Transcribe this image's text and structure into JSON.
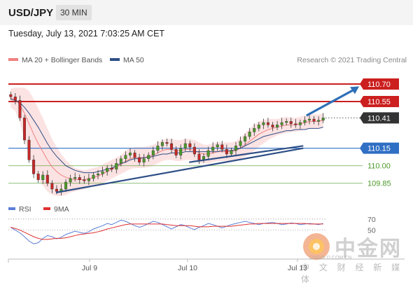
{
  "header": {
    "symbol": "USD/JPY",
    "timeframe": "30 MIN"
  },
  "timestamp": "Tuesday, July 13, 2021 7:03:25 AM CET",
  "legend": {
    "ma20_label": "MA 20 + Bollinger Bands",
    "ma20_color": "#f08080",
    "ma50_label": "MA 50",
    "ma50_color": "#2e4f86"
  },
  "credit": "Research © 2021 Trading Central",
  "rsi_legend": {
    "rsi_label": "RSI",
    "rsi_color": "#5b7fd6",
    "ma_label": "9MA",
    "ma_color": "#e03030"
  },
  "watermark": {
    "name": "中金网",
    "url": "CNGOLD.COM.CN",
    "sub": "中 文 财 经 新 媒 体"
  },
  "chart_data": [
    {
      "type": "candlestick",
      "y_range": [
        109.74,
        110.82
      ],
      "x_ticks": [
        "Jul 9",
        "Jul 10",
        "Jul 13"
      ],
      "price_levels": [
        {
          "label": "110.70",
          "value": 110.7,
          "kind": "resistance",
          "color": "#cc1f1f"
        },
        {
          "label": "110.55",
          "value": 110.55,
          "kind": "resistance",
          "color": "#cc1f1f"
        },
        {
          "label": "110.41",
          "value": 110.41,
          "kind": "last",
          "color": "#333333"
        },
        {
          "label": "110.15",
          "value": 110.15,
          "kind": "pivot",
          "color": "#2f6fc4"
        },
        {
          "label": "110.00",
          "value": 110.0,
          "kind": "support",
          "color": "#4c9a2a"
        },
        {
          "label": "109.85",
          "value": 109.85,
          "kind": "support",
          "color": "#4c9a2a"
        }
      ],
      "trendlines": [
        {
          "from": [
            0.15,
            109.77
          ],
          "to": [
            0.93,
            110.15
          ]
        },
        {
          "from": [
            0.57,
            110.03
          ],
          "to": [
            0.93,
            110.17
          ]
        }
      ],
      "arrow": {
        "from": [
          0.94,
          110.43
        ],
        "to": [
          1.0,
          110.68
        ]
      },
      "close": [
        110.59,
        110.56,
        110.41,
        110.22,
        110.05,
        109.93,
        109.88,
        109.92,
        109.85,
        109.8,
        109.78,
        109.8,
        109.86,
        109.89,
        109.9,
        109.88,
        109.87,
        109.89,
        109.92,
        109.93,
        109.95,
        109.98,
        109.97,
        110.02,
        110.06,
        110.09,
        110.11,
        110.07,
        110.03,
        110.06,
        110.09,
        110.13,
        110.17,
        110.2,
        110.19,
        110.14,
        110.09,
        110.15,
        110.19,
        110.16,
        110.1,
        110.05,
        110.08,
        110.13,
        110.16,
        110.18,
        110.14,
        110.1,
        110.13,
        110.17,
        110.21,
        110.25,
        110.29,
        110.32,
        110.35,
        110.37,
        110.35,
        110.33,
        110.35,
        110.37,
        110.38,
        110.36,
        110.35,
        110.37,
        110.39,
        110.4,
        110.38,
        110.39,
        110.41
      ],
      "ma20": [
        110.58,
        110.57,
        110.52,
        110.45,
        110.36,
        110.27,
        110.19,
        110.12,
        110.05,
        109.99,
        109.95,
        109.92,
        109.9,
        109.89,
        109.88,
        109.88,
        109.88,
        109.89,
        109.9,
        109.91,
        109.93,
        109.95,
        109.97,
        109.99,
        110.01,
        110.04,
        110.06,
        110.07,
        110.07,
        110.07,
        110.08,
        110.09,
        110.11,
        110.13,
        110.14,
        110.14,
        110.13,
        110.13,
        110.14,
        110.14,
        110.13,
        110.11,
        110.1,
        110.1,
        110.11,
        110.12,
        110.12,
        110.12,
        110.12,
        110.13,
        110.15,
        110.18,
        110.21,
        110.24,
        110.27,
        110.29,
        110.31,
        110.32,
        110.33,
        110.34,
        110.35,
        110.35,
        110.35,
        110.36,
        110.37,
        110.38,
        110.38,
        110.38,
        110.39
      ],
      "bb_width": [
        0.08,
        0.1,
        0.15,
        0.22,
        0.28,
        0.3,
        0.3,
        0.29,
        0.27,
        0.24,
        0.21,
        0.18,
        0.15,
        0.12,
        0.1,
        0.09,
        0.08,
        0.08,
        0.08,
        0.08,
        0.08,
        0.08,
        0.08,
        0.08,
        0.08,
        0.09,
        0.09,
        0.09,
        0.09,
        0.09,
        0.09,
        0.09,
        0.09,
        0.09,
        0.09,
        0.09,
        0.09,
        0.09,
        0.09,
        0.09,
        0.09,
        0.09,
        0.08,
        0.08,
        0.08,
        0.08,
        0.08,
        0.08,
        0.08,
        0.08,
        0.09,
        0.1,
        0.11,
        0.11,
        0.11,
        0.1,
        0.09,
        0.08,
        0.07,
        0.07,
        0.07,
        0.06,
        0.06,
        0.06,
        0.06,
        0.06,
        0.06,
        0.06,
        0.06
      ],
      "ma50": [
        110.57,
        110.56,
        110.54,
        110.5,
        110.45,
        110.39,
        110.33,
        110.26,
        110.19,
        110.13,
        110.08,
        110.04,
        110.0,
        109.98,
        109.96,
        109.95,
        109.94,
        109.94,
        109.94,
        109.95,
        109.96,
        109.97,
        109.98,
        110.0,
        110.02,
        110.03,
        110.05,
        110.06,
        110.06,
        110.07,
        110.07,
        110.08,
        110.09,
        110.1,
        110.1,
        110.11,
        110.11,
        110.11,
        110.12,
        110.12,
        110.12,
        110.12,
        110.12,
        110.12,
        110.12,
        110.12,
        110.13,
        110.13,
        110.13,
        110.14,
        110.15,
        110.17,
        110.19,
        110.21,
        110.23,
        110.25,
        110.26,
        110.27,
        110.28,
        110.29,
        110.3,
        110.3,
        110.31,
        110.31,
        110.31,
        110.32,
        110.32,
        110.32,
        110.33
      ]
    },
    {
      "type": "line",
      "name": "RSI",
      "y_ticks": [
        70,
        50
      ],
      "y_range": [
        10,
        80
      ],
      "rsi": [
        55,
        50,
        45,
        38,
        30,
        25,
        27,
        35,
        40,
        38,
        34,
        37,
        42,
        45,
        48,
        46,
        44,
        47,
        52,
        55,
        58,
        62,
        60,
        64,
        68,
        66,
        62,
        58,
        55,
        58,
        62,
        66,
        64,
        60,
        56,
        52,
        56,
        60,
        58,
        54,
        51,
        55,
        58,
        62,
        60,
        57,
        54,
        57,
        60,
        62,
        64,
        66,
        64,
        62,
        60,
        62,
        63,
        64,
        62,
        60,
        61,
        63,
        62,
        60,
        61,
        62,
        61,
        60,
        62
      ],
      "ma9": [
        55,
        53,
        50,
        46,
        42,
        38,
        35,
        33,
        33,
        34,
        35,
        35,
        36,
        38,
        40,
        42,
        43,
        44,
        45,
        47,
        49,
        52,
        54,
        56,
        58,
        60,
        61,
        61,
        61,
        61,
        61,
        61,
        61,
        61,
        60,
        59,
        58,
        58,
        58,
        58,
        57,
        56,
        56,
        56,
        57,
        57,
        57,
        57,
        57,
        58,
        59,
        60,
        61,
        61,
        62,
        62,
        62,
        62,
        62,
        62,
        62,
        62,
        62,
        62,
        62,
        61,
        61,
        61,
        61
      ]
    }
  ]
}
